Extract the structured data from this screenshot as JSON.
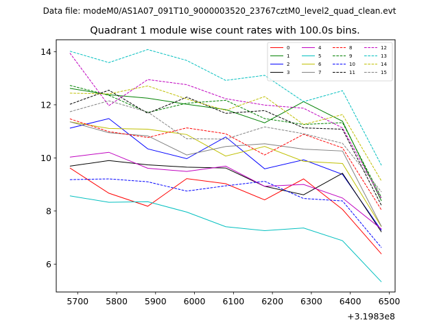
{
  "chart_data": {
    "type": "line",
    "suptitle": "Data file: modeM0/AS1A07_091T10_9000003520_23767cztM0_level2_quad_clean.evt",
    "title": "Quadrant 1 module wise count rates with 100.0s bins.",
    "xlabel": "",
    "ylabel": "",
    "x_offset_label": "+3.1983e8",
    "x": [
      5680,
      5780,
      5880,
      5980,
      6080,
      6180,
      6280,
      6380,
      6480
    ],
    "xlim": [
      5645,
      6515
    ],
    "ylim": [
      4.95,
      14.45
    ],
    "xticks": [
      5700,
      5800,
      5900,
      6000,
      6100,
      6200,
      6300,
      6400,
      6500
    ],
    "yticks": [
      6,
      8,
      10,
      12,
      14
    ],
    "grid": false,
    "legend_position": "top-right",
    "series": [
      {
        "name": "0",
        "color": "#ff0000",
        "dash": "solid",
        "values": [
          9.62,
          8.67,
          8.18,
          9.22,
          9.03,
          8.42,
          9.21,
          8.06,
          6.38
        ]
      },
      {
        "name": "1",
        "color": "#008000",
        "dash": "solid",
        "values": [
          12.62,
          12.38,
          12.25,
          12.02,
          11.82,
          11.32,
          12.12,
          11.38,
          8.38
        ]
      },
      {
        "name": "2",
        "color": "#0000ff",
        "dash": "solid",
        "values": [
          11.12,
          11.48,
          10.34,
          9.97,
          10.79,
          9.59,
          9.93,
          9.38,
          7.27
        ]
      },
      {
        "name": "3",
        "color": "#000000",
        "dash": "solid",
        "values": [
          9.69,
          9.9,
          9.74,
          9.65,
          9.62,
          8.93,
          8.61,
          9.42,
          7.21
        ]
      },
      {
        "name": "4",
        "color": "#bf00bf",
        "dash": "solid",
        "values": [
          10.03,
          10.21,
          9.61,
          9.49,
          9.69,
          8.93,
          9.0,
          8.49,
          7.32
        ]
      },
      {
        "name": "5",
        "color": "#00bfbf",
        "dash": "solid",
        "values": [
          8.57,
          8.33,
          8.35,
          7.96,
          7.41,
          7.26,
          7.36,
          6.88,
          5.33
        ]
      },
      {
        "name": "6",
        "color": "#bfbf00",
        "dash": "solid",
        "values": [
          11.36,
          11.11,
          11.08,
          10.88,
          10.07,
          10.43,
          9.87,
          9.79,
          7.41
        ]
      },
      {
        "name": "7",
        "color": "#808080",
        "dash": "solid",
        "values": [
          11.36,
          10.95,
          10.83,
          10.11,
          10.43,
          10.53,
          10.33,
          10.26,
          7.42
        ]
      },
      {
        "name": "8",
        "color": "#ff0000",
        "dash": "dashed",
        "values": [
          11.47,
          10.99,
          10.77,
          11.13,
          10.91,
          10.11,
          10.89,
          10.38,
          8.04
        ]
      },
      {
        "name": "9",
        "color": "#008000",
        "dash": "dashed",
        "values": [
          12.73,
          12.36,
          11.71,
          12.06,
          12.17,
          11.48,
          11.26,
          11.33,
          8.51
        ]
      },
      {
        "name": "10",
        "color": "#0000ff",
        "dash": "dashed",
        "values": [
          9.18,
          9.21,
          9.1,
          8.75,
          8.95,
          9.12,
          8.47,
          8.38,
          6.62
        ]
      },
      {
        "name": "11",
        "color": "#000000",
        "dash": "dashed",
        "values": [
          12.02,
          12.55,
          11.68,
          12.29,
          11.68,
          11.78,
          11.13,
          11.08,
          8.21
        ]
      },
      {
        "name": "12",
        "color": "#bf00bf",
        "dash": "dashed",
        "values": [
          13.95,
          11.97,
          12.95,
          12.76,
          12.23,
          11.99,
          11.87,
          11.13,
          8.46
        ]
      },
      {
        "name": "13",
        "color": "#00bfbf",
        "dash": "dashed",
        "values": [
          14.02,
          13.59,
          14.08,
          13.67,
          12.92,
          13.11,
          12.12,
          12.53,
          9.72
        ]
      },
      {
        "name": "14",
        "color": "#bfbf00",
        "dash": "dashed",
        "values": [
          12.44,
          12.41,
          12.71,
          12.22,
          11.79,
          12.31,
          11.26,
          11.63,
          9.13
        ]
      },
      {
        "name": "15",
        "color": "#808080",
        "dash": "dashed",
        "values": [
          11.74,
          12.15,
          11.73,
          10.72,
          10.71,
          11.17,
          10.91,
          10.55,
          8.72
        ]
      }
    ]
  }
}
